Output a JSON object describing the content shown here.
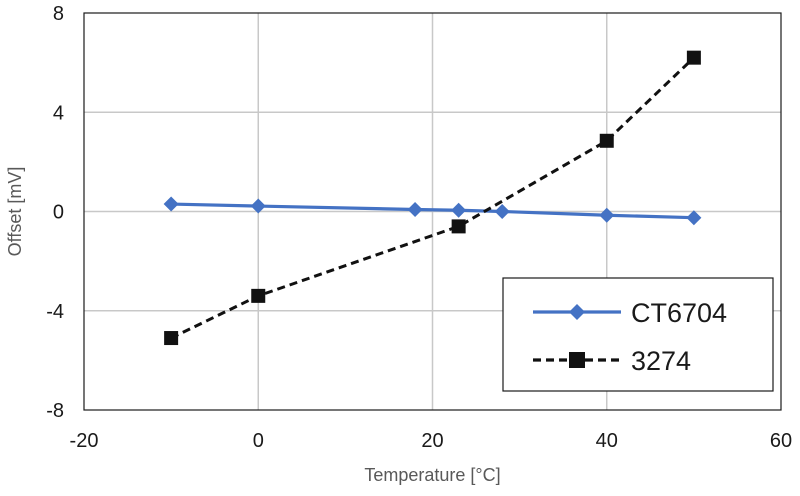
{
  "chart_data": {
    "type": "line",
    "xlabel": "Temperature [°C]",
    "ylabel": "Offset [mV]",
    "xlim": [
      -20,
      60
    ],
    "ylim": [
      -8,
      8
    ],
    "x_ticks": [
      -20,
      0,
      20,
      40,
      60
    ],
    "y_ticks": [
      -8,
      -4,
      0,
      4,
      8
    ],
    "x_tick_labels": [
      "-20",
      "0",
      "20",
      "40",
      "60"
    ],
    "y_tick_labels": [
      "-8",
      "-4",
      "0",
      "4",
      "8"
    ],
    "grid": true,
    "legend_position": "bottom-right",
    "series": [
      {
        "name": "CT6704",
        "color": "#4472c4",
        "line_style": "solid",
        "marker": "diamond",
        "points": [
          {
            "x": -10,
            "y": 0.3
          },
          {
            "x": 0,
            "y": 0.22
          },
          {
            "x": 18,
            "y": 0.08
          },
          {
            "x": 23,
            "y": 0.05
          },
          {
            "x": 28,
            "y": 0.0
          },
          {
            "x": 40,
            "y": -0.15
          },
          {
            "x": 50,
            "y": -0.25
          }
        ]
      },
      {
        "name": "3274",
        "color": "#111111",
        "line_style": "dashed",
        "marker": "square",
        "points": [
          {
            "x": -10,
            "y": -5.1
          },
          {
            "x": 0,
            "y": -3.4
          },
          {
            "x": 23,
            "y": -0.6
          },
          {
            "x": 40,
            "y": 2.85
          },
          {
            "x": 50,
            "y": 6.2
          }
        ]
      }
    ]
  }
}
